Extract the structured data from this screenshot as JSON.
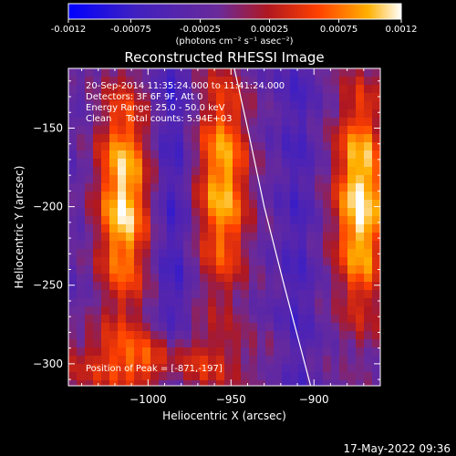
{
  "colorbar": {
    "tick_labels": [
      "-0.0012",
      "-0.00075",
      "-0.00025",
      "0.00025",
      "0.00075",
      "0.0012"
    ],
    "units_label": "(photons cm⁻² s⁻¹ asec⁻²)",
    "range": [
      -0.0012,
      0.0012
    ],
    "colors": [
      "#0000ff",
      "#4020c0",
      "#6a2a9a",
      "#b01820",
      "#ff4000",
      "#ffb000",
      "#ffffff"
    ]
  },
  "chart_data": {
    "type": "heatmap",
    "title": "Reconstructed RHESSI Image",
    "xlabel": "Heliocentric X (arcsec)",
    "ylabel": "Heliocentric Y (arcsec)",
    "xlim": [
      -1048,
      -860
    ],
    "ylim": [
      -314,
      -112
    ],
    "x_ticks": [
      -1000,
      -950,
      -900
    ],
    "y_ticks": [
      -150,
      -200,
      -250,
      -300
    ],
    "x_tick_labels": [
      "−1000",
      "−950",
      "−900"
    ],
    "y_tick_labels": [
      "−150",
      "−200",
      "−250",
      "−300"
    ],
    "annotations": [
      "20-Sep-2014 11:35:24.000 to 11:41:24.000",
      "Detectors: 3F 6F 9F, Att 0",
      "Energy Range: 25.0 - 50.0 keV",
      "Clean     Total counts: 5.94E+03"
    ],
    "peak_label": "Position of Peak = [-871,-197]",
    "peak": [
      -871,
      -197
    ],
    "limb_curve": [
      [
        -948,
        -112
      ],
      [
        -940,
        -150
      ],
      [
        -930,
        -200
      ],
      [
        -918,
        -250
      ],
      [
        -902,
        -314
      ]
    ],
    "bright_bands": [
      {
        "x": -1015,
        "y": -195,
        "intensity": 0.95
      },
      {
        "x": -955,
        "y": -185,
        "intensity": 0.85
      },
      {
        "x": -872,
        "y": -197,
        "intensity": 1.0
      }
    ]
  },
  "footer": {
    "date": "17-May-2022 09:36"
  }
}
